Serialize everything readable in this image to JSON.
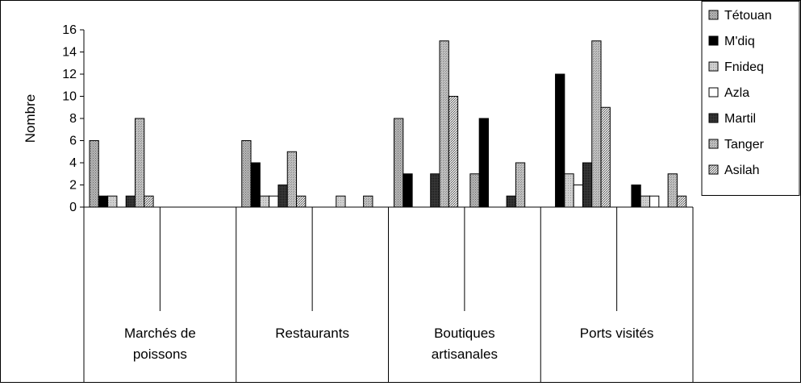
{
  "chart_data": {
    "type": "bar",
    "ylabel": "Nombre",
    "ylim": [
      0,
      16
    ],
    "yticks": [
      0,
      2,
      4,
      6,
      8,
      10,
      12,
      14,
      16
    ],
    "grid": false,
    "legend_position": "right",
    "groups": [
      {
        "label_lines": [
          "Marchés de",
          "poissons"
        ],
        "subgroup_count": 2
      },
      {
        "label_lines": [
          "Restaurants"
        ],
        "subgroup_count": 2
      },
      {
        "label_lines": [
          "Boutiques",
          "artisanales"
        ],
        "subgroup_count": 2
      },
      {
        "label_lines": [
          "Ports visités"
        ],
        "subgroup_count": 2
      }
    ],
    "series": [
      {
        "name": "Tétouan",
        "style": "dense-gray",
        "values": [
          6,
          0,
          6,
          0,
          8,
          3,
          12,
          0
        ]
      },
      {
        "name": "M'diq",
        "style": "black",
        "values": [
          1,
          1,
          4,
          2,
          3,
          8,
          3,
          2
        ]
      },
      {
        "name": "Fnideq",
        "style": "light-gray",
        "values": [
          1,
          8,
          1,
          5,
          3,
          1,
          2,
          1
        ]
      },
      {
        "name": "Azla",
        "style": "white",
        "values": [
          0,
          1,
          1,
          1,
          15,
          4,
          4,
          1
        ]
      },
      {
        "name": "Martil",
        "style": "dark",
        "values": [
          0,
          0,
          2,
          0,
          10,
          0,
          0,
          0
        ]
      },
      {
        "name": "Tanger",
        "style": "mid-gray",
        "values": [
          0,
          0,
          5,
          1,
          0,
          0,
          15,
          3
        ]
      },
      {
        "name": "Asilah",
        "style": "dotted",
        "values": [
          0,
          0,
          1,
          0,
          0,
          0,
          9,
          1
        ]
      }
    ],
    "bars": [
      {
        "subgroup": 0,
        "series": 0,
        "value": 6
      },
      {
        "subgroup": 0,
        "series": 1,
        "value": 1
      },
      {
        "subgroup": 0,
        "series": 2,
        "value": 1
      },
      {
        "subgroup": 0,
        "series": 4,
        "value": 1
      },
      {
        "subgroup": 0,
        "series": 5,
        "value": 8
      },
      {
        "subgroup": 0,
        "series": 6,
        "value": 1
      },
      {
        "subgroup": 2,
        "series": 0,
        "value": 6
      },
      {
        "subgroup": 2,
        "series": 1,
        "value": 4
      },
      {
        "subgroup": 2,
        "series": 2,
        "value": 1
      },
      {
        "subgroup": 2,
        "series": 3,
        "value": 1
      },
      {
        "subgroup": 2,
        "series": 4,
        "value": 2
      },
      {
        "subgroup": 2,
        "series": 5,
        "value": 5
      },
      {
        "subgroup": 2,
        "series": 6,
        "value": 1
      },
      {
        "subgroup": 3,
        "series": 2,
        "value": 1
      },
      {
        "subgroup": 3,
        "series": 5,
        "value": 1
      },
      {
        "subgroup": 4,
        "series": 0,
        "value": 8
      },
      {
        "subgroup": 4,
        "series": 1,
        "value": 3
      },
      {
        "subgroup": 4,
        "series": 4,
        "value": 3
      },
      {
        "subgroup": 4,
        "series": 5,
        "value": 15
      },
      {
        "subgroup": 4,
        "series": 6,
        "value": 10
      },
      {
        "subgroup": 5,
        "series": 0,
        "value": 3
      },
      {
        "subgroup": 5,
        "series": 1,
        "value": 8
      },
      {
        "subgroup": 5,
        "series": 4,
        "value": 1
      },
      {
        "subgroup": 5,
        "series": 5,
        "value": 4
      },
      {
        "subgroup": 6,
        "series": 1,
        "value": 12
      },
      {
        "subgroup": 6,
        "series": 2,
        "value": 3
      },
      {
        "subgroup": 6,
        "series": 3,
        "value": 2
      },
      {
        "subgroup": 6,
        "series": 4,
        "value": 4
      },
      {
        "subgroup": 6,
        "series": 5,
        "value": 15
      },
      {
        "subgroup": 6,
        "series": 6,
        "value": 9
      },
      {
        "subgroup": 7,
        "series": 1,
        "value": 2
      },
      {
        "subgroup": 7,
        "series": 2,
        "value": 1
      },
      {
        "subgroup": 7,
        "series": 3,
        "value": 1
      },
      {
        "subgroup": 7,
        "series": 5,
        "value": 3
      },
      {
        "subgroup": 7,
        "series": 6,
        "value": 1
      }
    ]
  }
}
